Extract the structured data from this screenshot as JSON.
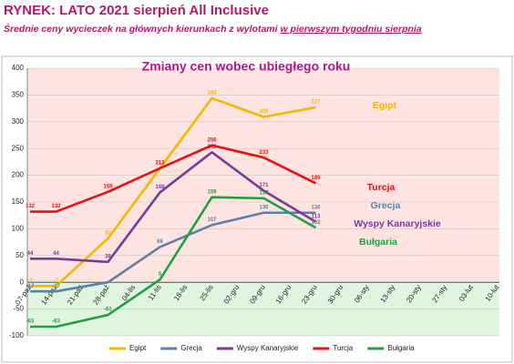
{
  "header": {
    "title": "RYNEK: LATO 2021 sierpień All Inclusive",
    "subtitle": "Średnie ceny wycieczek na głównych kierunkach z wylotami ",
    "subtitle_underlined": "w pierwszym tygodniu sierpnia"
  },
  "chart_data": {
    "type": "line",
    "title": "Zmiany cen wobec ubiegłego roku",
    "categories": [
      "07-paź",
      "14-paź",
      "21-paź",
      "28-paź",
      "04-lis",
      "11-lis",
      "18-lis",
      "25-lis",
      "02-gru",
      "09-gru",
      "16-gru",
      "23-gru",
      "30-gru",
      "06-sty",
      "13-sty",
      "20-sty",
      "27-sty",
      "03-lut",
      "10-lut"
    ],
    "connect_gaps": true,
    "ylim": [
      -100,
      400
    ],
    "yticks": [
      -100,
      -50,
      0,
      50,
      100,
      150,
      200,
      250,
      300,
      350,
      400
    ],
    "legend": "bottom",
    "series": [
      {
        "name": "Egipt",
        "color": "#f5b800",
        "values": [
          -7,
          -7,
          null,
          82,
          null,
          213,
          null,
          344,
          null,
          309,
          null,
          327,
          null,
          null,
          null,
          null,
          null,
          null,
          null
        ],
        "value_labels": [
          "-7",
          "-7",
          null,
          "82",
          null,
          null,
          null,
          "344",
          null,
          "309",
          null,
          "327",
          null,
          null,
          null,
          null,
          null,
          null,
          null
        ]
      },
      {
        "name": "Grecja",
        "color": "#5b7fae",
        "values": [
          -17,
          -17,
          null,
          0,
          null,
          66,
          null,
          107,
          null,
          130,
          null,
          130,
          null,
          null,
          null,
          null,
          null,
          null,
          null
        ],
        "value_labels": [
          "-17",
          "-17",
          null,
          null,
          null,
          "66",
          null,
          "107",
          null,
          "130",
          null,
          "130",
          null,
          null,
          null,
          null,
          null,
          null,
          null
        ]
      },
      {
        "name": "Wyspy Kanaryjskie",
        "color": "#7a3a9a",
        "values": [
          44,
          44,
          null,
          38,
          null,
          168,
          null,
          243,
          null,
          171,
          null,
          113,
          null,
          null,
          null,
          null,
          null,
          null,
          null
        ],
        "value_labels": [
          "44",
          "44",
          null,
          "38",
          null,
          "168",
          null,
          "243",
          null,
          "171",
          null,
          "113",
          null,
          null,
          null,
          null,
          null,
          null,
          null
        ]
      },
      {
        "name": "Turcja",
        "color": "#e81010",
        "values": [
          132,
          132,
          null,
          169,
          null,
          213,
          null,
          256,
          null,
          233,
          null,
          185,
          null,
          null,
          null,
          null,
          null,
          null,
          null
        ],
        "value_labels": [
          "132",
          "132",
          null,
          "169",
          null,
          "213",
          null,
          "256",
          null,
          "233",
          null,
          "185",
          null,
          null,
          null,
          null,
          null,
          null,
          null
        ]
      },
      {
        "name": "Bułgaria",
        "color": "#22a040",
        "values": [
          -83,
          -83,
          null,
          -61,
          null,
          5,
          null,
          159,
          null,
          157,
          null,
          102,
          null,
          null,
          null,
          null,
          null,
          null,
          null
        ],
        "value_labels": [
          "-83",
          "-83",
          null,
          "-61",
          null,
          "5",
          null,
          "159",
          null,
          "157",
          null,
          "102",
          null,
          null,
          null,
          null,
          null,
          null,
          null
        ]
      }
    ]
  }
}
